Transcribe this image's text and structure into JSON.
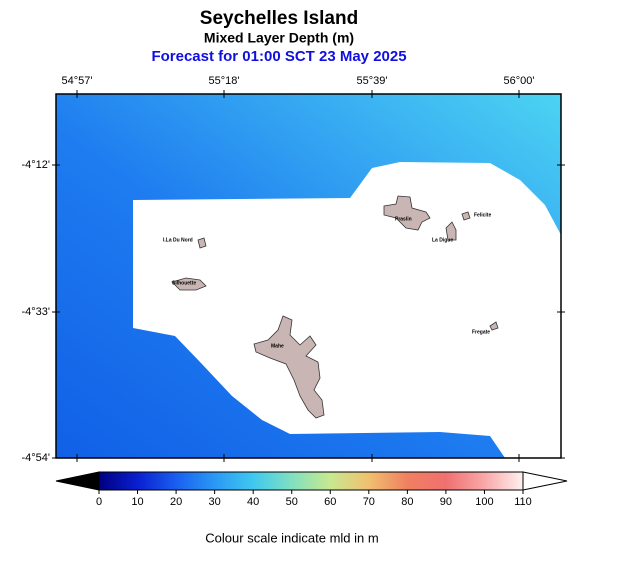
{
  "header": {
    "title": "Seychelles Island",
    "subtitle": "Mixed Layer Depth (m)",
    "forecast": "Forecast for  01:00 SCT 23 May 2025"
  },
  "map": {
    "lon_labels": [
      "54°57'",
      "55°18'",
      "55°39'",
      "56°00'"
    ],
    "lat_labels": [
      "-4°12'",
      "-4°33'",
      "-4°54'"
    ],
    "islands": [
      "I.La Du Nord",
      "Silhouette",
      "Praslin",
      "Felicite",
      "La Digue",
      "Mahe",
      "Fregate"
    ]
  },
  "colorbar": {
    "lim": [
      0,
      110
    ],
    "ticks": [
      0,
      10,
      20,
      30,
      40,
      50,
      60,
      70,
      80,
      90,
      100,
      110
    ],
    "colors": [
      "#000080",
      "#0a1fd0",
      "#1a5ff0",
      "#2a98f5",
      "#40c8f0",
      "#80e0c0",
      "#c8e890",
      "#f0c070",
      "#f08060",
      "#f07070",
      "#f8a8a8",
      "#fff0f0"
    ],
    "caption": "Colour scale indicate mld in m"
  }
}
